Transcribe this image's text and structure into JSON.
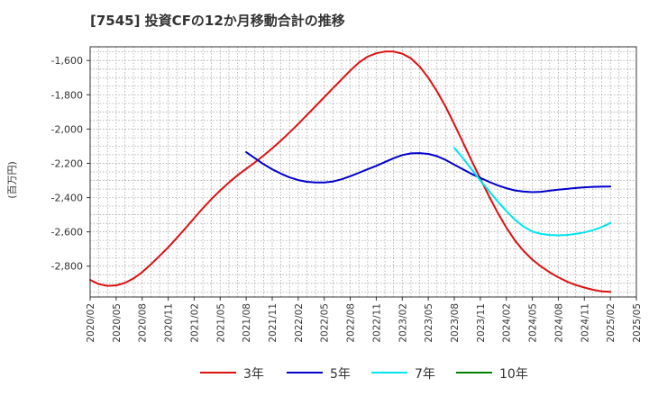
{
  "chart_data": {
    "type": "line",
    "title": "[7545]  投資CFの12か月移動合計の推移",
    "ylabel": "(百万円)",
    "xlabel": "",
    "ylim": [
      -2980,
      -1520
    ],
    "yticks": [
      -1600,
      -1800,
      -2000,
      -2200,
      -2400,
      -2600,
      -2800
    ],
    "ytick_labels": [
      "-1,600",
      "-1,800",
      "-2,000",
      "-2,200",
      "-2,400",
      "-2,600",
      "-2,800"
    ],
    "xlim": [
      "2020-02",
      "2025-05"
    ],
    "xticks": [
      "2020/02",
      "2020/05",
      "2020/08",
      "2020/11",
      "2021/02",
      "2021/05",
      "2021/08",
      "2021/11",
      "2022/02",
      "2022/05",
      "2022/08",
      "2022/11",
      "2023/02",
      "2023/05",
      "2023/08",
      "2023/11",
      "2024/02",
      "2024/05",
      "2024/08",
      "2024/11",
      "2025/02",
      "2025/05"
    ],
    "grid": true,
    "legend_position": "bottom",
    "series": [
      {
        "name": "3年",
        "color": "#dd1111",
        "points": [
          [
            "2020-02",
            -2880
          ],
          [
            "2020-03",
            -2905
          ],
          [
            "2020-04",
            -2915
          ],
          [
            "2020-05",
            -2912
          ],
          [
            "2020-06",
            -2898
          ],
          [
            "2020-07",
            -2872
          ],
          [
            "2020-08",
            -2835
          ],
          [
            "2020-09",
            -2790
          ],
          [
            "2020-10",
            -2740
          ],
          [
            "2020-11",
            -2690
          ],
          [
            "2020-12",
            -2635
          ],
          [
            "2021-01",
            -2578
          ],
          [
            "2021-02",
            -2520
          ],
          [
            "2021-03",
            -2462
          ],
          [
            "2021-04",
            -2408
          ],
          [
            "2021-05",
            -2358
          ],
          [
            "2021-06",
            -2312
          ],
          [
            "2021-07",
            -2270
          ],
          [
            "2021-08",
            -2232
          ],
          [
            "2021-09",
            -2195
          ],
          [
            "2021-10",
            -2155
          ],
          [
            "2021-11",
            -2112
          ],
          [
            "2021-12",
            -2068
          ],
          [
            "2022-01",
            -2020
          ],
          [
            "2022-02",
            -1970
          ],
          [
            "2022-03",
            -1918
          ],
          [
            "2022-04",
            -1866
          ],
          [
            "2022-05",
            -1814
          ],
          [
            "2022-06",
            -1762
          ],
          [
            "2022-07",
            -1710
          ],
          [
            "2022-08",
            -1658
          ],
          [
            "2022-09",
            -1612
          ],
          [
            "2022-10",
            -1578
          ],
          [
            "2022-11",
            -1558
          ],
          [
            "2022-12",
            -1548
          ],
          [
            "2023-01",
            -1548
          ],
          [
            "2023-02",
            -1560
          ],
          [
            "2023-03",
            -1588
          ],
          [
            "2023-04",
            -1635
          ],
          [
            "2023-05",
            -1700
          ],
          [
            "2023-06",
            -1780
          ],
          [
            "2023-07",
            -1870
          ],
          [
            "2023-08",
            -1972
          ],
          [
            "2023-09",
            -2078
          ],
          [
            "2023-10",
            -2185
          ],
          [
            "2023-11",
            -2290
          ],
          [
            "2023-12",
            -2392
          ],
          [
            "2024-01",
            -2488
          ],
          [
            "2024-02",
            -2575
          ],
          [
            "2024-03",
            -2650
          ],
          [
            "2024-04",
            -2712
          ],
          [
            "2024-05",
            -2762
          ],
          [
            "2024-06",
            -2802
          ],
          [
            "2024-07",
            -2836
          ],
          [
            "2024-08",
            -2865
          ],
          [
            "2024-09",
            -2890
          ],
          [
            "2024-10",
            -2910
          ],
          [
            "2024-11",
            -2925
          ],
          [
            "2024-12",
            -2938
          ],
          [
            "2025-01",
            -2947
          ],
          [
            "2025-02",
            -2950
          ]
        ]
      },
      {
        "name": "5年",
        "color": "#0000cc",
        "points": [
          [
            "2021-08",
            -2135
          ],
          [
            "2021-09",
            -2170
          ],
          [
            "2021-10",
            -2205
          ],
          [
            "2021-11",
            -2235
          ],
          [
            "2021-12",
            -2260
          ],
          [
            "2022-01",
            -2282
          ],
          [
            "2022-02",
            -2298
          ],
          [
            "2022-03",
            -2308
          ],
          [
            "2022-04",
            -2312
          ],
          [
            "2022-05",
            -2312
          ],
          [
            "2022-06",
            -2306
          ],
          [
            "2022-07",
            -2293
          ],
          [
            "2022-08",
            -2275
          ],
          [
            "2022-09",
            -2255
          ],
          [
            "2022-10",
            -2235
          ],
          [
            "2022-11",
            -2215
          ],
          [
            "2022-12",
            -2193
          ],
          [
            "2023-01",
            -2170
          ],
          [
            "2023-02",
            -2152
          ],
          [
            "2023-03",
            -2142
          ],
          [
            "2023-04",
            -2140
          ],
          [
            "2023-05",
            -2145
          ],
          [
            "2023-06",
            -2158
          ],
          [
            "2023-07",
            -2180
          ],
          [
            "2023-08",
            -2208
          ],
          [
            "2023-09",
            -2235
          ],
          [
            "2023-10",
            -2262
          ],
          [
            "2023-11",
            -2285
          ],
          [
            "2023-12",
            -2308
          ],
          [
            "2024-01",
            -2328
          ],
          [
            "2024-02",
            -2345
          ],
          [
            "2024-03",
            -2358
          ],
          [
            "2024-04",
            -2365
          ],
          [
            "2024-05",
            -2368
          ],
          [
            "2024-06",
            -2366
          ],
          [
            "2024-07",
            -2360
          ],
          [
            "2024-08",
            -2354
          ],
          [
            "2024-09",
            -2349
          ],
          [
            "2024-10",
            -2344
          ],
          [
            "2024-11",
            -2340
          ],
          [
            "2024-12",
            -2337
          ],
          [
            "2025-01",
            -2336
          ],
          [
            "2025-02",
            -2335
          ]
        ]
      },
      {
        "name": "7年",
        "color": "#00e5ee",
        "points": [
          [
            "2023-08",
            -2110
          ],
          [
            "2023-09",
            -2170
          ],
          [
            "2023-10",
            -2235
          ],
          [
            "2023-11",
            -2300
          ],
          [
            "2023-12",
            -2362
          ],
          [
            "2024-01",
            -2422
          ],
          [
            "2024-02",
            -2478
          ],
          [
            "2024-03",
            -2530
          ],
          [
            "2024-04",
            -2570
          ],
          [
            "2024-05",
            -2598
          ],
          [
            "2024-06",
            -2612
          ],
          [
            "2024-07",
            -2618
          ],
          [
            "2024-08",
            -2620
          ],
          [
            "2024-09",
            -2618
          ],
          [
            "2024-10",
            -2612
          ],
          [
            "2024-11",
            -2603
          ],
          [
            "2024-12",
            -2590
          ],
          [
            "2025-01",
            -2572
          ],
          [
            "2025-02",
            -2548
          ]
        ]
      },
      {
        "name": "10年",
        "color": "#008000",
        "points": []
      }
    ]
  }
}
